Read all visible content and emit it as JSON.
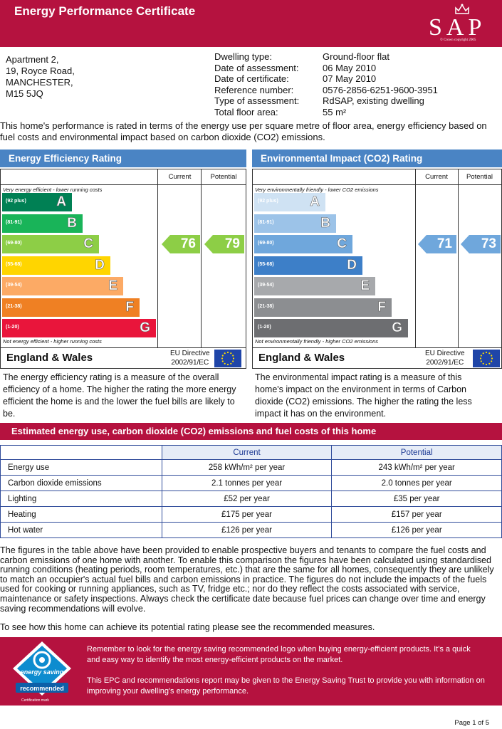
{
  "header": {
    "title": "Energy Performance Certificate",
    "logo_text": "SAP",
    "logo_copyright": "© Crown copyright 2005"
  },
  "address": [
    "Apartment 2,",
    "19, Royce Road,",
    "MANCHESTER,",
    "M15 5JQ"
  ],
  "details": [
    {
      "label": "Dwelling type:",
      "value": "Ground-floor flat"
    },
    {
      "label": "Date of assessment:",
      "value": "06 May 2010"
    },
    {
      "label": "Date of certificate:",
      "value": "07 May 2010"
    },
    {
      "label": "Reference number:",
      "value": "0576-2856-6251-9600-3951"
    },
    {
      "label": "Type of assessment:",
      "value": "RdSAP, existing dwelling"
    },
    {
      "label": "Total floor area:",
      "value": "55 m²"
    }
  ],
  "intro": "This home's performance is rated in terms of the energy use per square metre of floor area, energy efficiency based on fuel costs and environmental impact based on carbon dioxide (CO2) emissions.",
  "energy": {
    "title": "Energy Efficiency Rating",
    "col_current": "Current",
    "col_potential": "Potential",
    "top_note": "Very energy efficient - lower running costs",
    "bottom_note": "Not energy efficient - higher running costs",
    "bands": [
      {
        "range": "(92 plus)",
        "letter": "A",
        "color": "#008054"
      },
      {
        "range": "(81-91)",
        "letter": "B",
        "color": "#19b459"
      },
      {
        "range": "(69-80)",
        "letter": "C",
        "color": "#8dce46"
      },
      {
        "range": "(55-68)",
        "letter": "D",
        "color": "#ffd500"
      },
      {
        "range": "(39-54)",
        "letter": "E",
        "color": "#fcaa65"
      },
      {
        "range": "(21-38)",
        "letter": "F",
        "color": "#ef8023"
      },
      {
        "range": "(1-20)",
        "letter": "G",
        "color": "#e9153b"
      }
    ],
    "current": "76",
    "potential": "79",
    "arrow_color": "#8dce46",
    "region": "England & Wales",
    "directive": [
      "EU Directive",
      "2002/91/EC"
    ],
    "description": "The energy efficiency rating is a measure of the overall efficiency of a home. The higher the rating the more energy efficient the home is and the lower the fuel bills are likely to be."
  },
  "environment": {
    "title": "Environmental Impact (CO2) Rating",
    "col_current": "Current",
    "col_potential": "Potential",
    "top_note": "Very environmentally friendly - lower CO2 emissions",
    "bottom_note": "Not environmentally friendly - higher CO2 emissions",
    "bands": [
      {
        "range": "(92 plus)",
        "letter": "A",
        "color": "#cfe2f3"
      },
      {
        "range": "(81-91)",
        "letter": "B",
        "color": "#9cc3e8"
      },
      {
        "range": "(69-80)",
        "letter": "C",
        "color": "#6fa7dc"
      },
      {
        "range": "(55-68)",
        "letter": "D",
        "color": "#3d7fc8"
      },
      {
        "range": "(39-54)",
        "letter": "E",
        "color": "#a7a9ac"
      },
      {
        "range": "(21-38)",
        "letter": "F",
        "color": "#8c8e91"
      },
      {
        "range": "(1-20)",
        "letter": "G",
        "color": "#6d6e71"
      }
    ],
    "current": "71",
    "potential": "73",
    "arrow_color": "#6fa7dc",
    "region": "England & Wales",
    "directive": [
      "EU Directive",
      "2002/91/EC"
    ],
    "description": "The environmental impact rating is a measure of this home's impact on the environment in terms of Carbon dioxide (CO2) emissions. The higher the rating the less impact it has on the environment."
  },
  "estimated": {
    "title": "Estimated energy use, carbon dioxide (CO2) emissions and fuel costs of this home",
    "col_current": "Current",
    "col_potential": "Potential",
    "rows": [
      {
        "label": "Energy use",
        "current": "258 kWh/m² per year",
        "potential": "243 kWh/m² per year"
      },
      {
        "label": "Carbon dioxide emissions",
        "current": "2.1 tonnes per year",
        "potential": "2.0 tonnes per year"
      },
      {
        "label": "Lighting",
        "current": "£52 per year",
        "potential": "£35 per year"
      },
      {
        "label": "Heating",
        "current": "£175 per year",
        "potential": "£157 per year"
      },
      {
        "label": "Hot water",
        "current": "£126 per year",
        "potential": "£126 per year"
      }
    ]
  },
  "body_text": "The figures in the table above have been provided to enable prospective buyers and tenants to compare the fuel costs and carbon emissions of one home with another. To enable this comparison the figures have been calculated using standardised running conditions (heating periods, room temperatures, etc.) that are the same for all homes, consequently they are unlikely to match an occupier's actual fuel bills and carbon emissions in practice. The figures do not include the impacts of the fuels used for cooking or running appliances, such as TV, fridge etc.; nor do they reflect the costs associated with service, maintenance or safety inspections. Always check the certificate date because fuel prices can change over time and energy saving recommendations will evolve.",
  "measures_text": "To see how this home can achieve its potential rating please see the recommended measures.",
  "banner": {
    "logo_line1": "energy saving",
    "logo_line2": "recommended",
    "cert_mark": "Certification mark",
    "p1": "Remember to look for the energy saving recommended logo when buying energy-efficient products. It's a quick and easy way to identify the most energy-efficient products on the market.",
    "p2": "This EPC and recommendations report may be given to the Energy Saving Trust to provide you with information on improving your dwelling's energy performance."
  },
  "page": "Page 1 of 5"
}
